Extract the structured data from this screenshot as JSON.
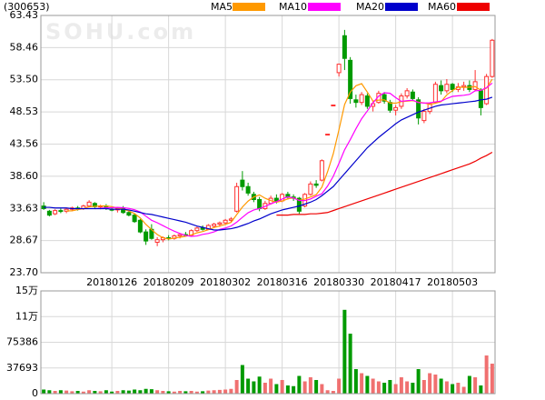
{
  "chart_data": [
    {
      "type": "candlestick",
      "title": "(300653)",
      "watermark": "SOHU.com",
      "categories": [
        null,
        null,
        null,
        null,
        null,
        null,
        null,
        null,
        null,
        null,
        null,
        null,
        "20180126",
        null,
        null,
        null,
        null,
        null,
        null,
        null,
        null,
        null,
        "20180209",
        null,
        null,
        null,
        null,
        null,
        null,
        null,
        null,
        null,
        "20180302",
        null,
        null,
        null,
        null,
        null,
        null,
        null,
        null,
        null,
        "20180316",
        null,
        null,
        null,
        null,
        null,
        null,
        null,
        null,
        null,
        "20180330",
        null,
        null,
        null,
        null,
        null,
        null,
        null,
        null,
        null,
        "20180417",
        null,
        null,
        null,
        null,
        null,
        null,
        null,
        null,
        null,
        "20180503",
        null,
        null,
        null,
        null,
        null,
        null,
        null
      ],
      "open": [
        34.0,
        33.2,
        32.8,
        33.3,
        33.2,
        33.5,
        33.7,
        33.6,
        34.0,
        34.4,
        33.9,
        34.0,
        33.5,
        33.4,
        33.6,
        33.0,
        32.6,
        31.8,
        30.0,
        30.4,
        28.4,
        28.8,
        29.1,
        29.0,
        29.4,
        29.6,
        29.5,
        30.2,
        30.6,
        30.4,
        30.9,
        31.2,
        31.4,
        31.8,
        33.2,
        38.0,
        37.0,
        35.8,
        35.0,
        33.6,
        34.4,
        35.2,
        34.8,
        35.8,
        35.4,
        35.2,
        34.0,
        35.8,
        37.4,
        38.0,
        45.1,
        49.6,
        54.6,
        60.3,
        56.5,
        50.4,
        50.0,
        51.0,
        49.4,
        50.0,
        51.2,
        50.0,
        48.8,
        49.4,
        51.0,
        51.6,
        50.4,
        47.2,
        48.6,
        50.0,
        52.6,
        51.8,
        52.8,
        52.0,
        52.4,
        52.6,
        52.0,
        51.8,
        49.8,
        54.0
      ],
      "high": [
        34.6,
        33.4,
        33.5,
        33.6,
        33.7,
        33.9,
        34.0,
        34.2,
        34.9,
        34.6,
        34.2,
        34.3,
        33.9,
        33.8,
        34.0,
        33.4,
        32.9,
        32.0,
        30.4,
        31.2,
        29.2,
        29.3,
        29.5,
        29.6,
        29.8,
        30.0,
        30.4,
        30.8,
        31.0,
        31.2,
        31.4,
        31.6,
        32.0,
        32.3,
        37.6,
        39.4,
        37.6,
        36.2,
        35.4,
        34.8,
        35.6,
        35.8,
        36.0,
        36.2,
        35.8,
        35.4,
        36.0,
        37.8,
        38.0,
        41.2,
        45.1,
        49.6,
        56.0,
        61.2,
        57.0,
        51.2,
        51.6,
        51.4,
        50.2,
        51.8,
        51.6,
        50.4,
        49.6,
        51.4,
        52.2,
        52.0,
        50.8,
        49.0,
        50.0,
        53.2,
        53.4,
        53.6,
        53.0,
        53.0,
        53.2,
        53.4,
        55.0,
        52.2,
        54.4,
        59.8
      ],
      "low": [
        33.4,
        32.4,
        32.6,
        32.9,
        32.9,
        33.2,
        33.3,
        33.4,
        33.8,
        33.7,
        33.5,
        33.4,
        33.2,
        33.0,
        32.8,
        32.4,
        31.4,
        29.8,
        28.0,
        28.8,
        27.8,
        28.4,
        28.7,
        28.8,
        29.0,
        29.3,
        29.4,
        30.0,
        30.2,
        30.3,
        30.6,
        30.8,
        31.1,
        31.5,
        33.0,
        36.4,
        35.6,
        34.6,
        33.2,
        33.4,
        34.2,
        34.4,
        34.6,
        35.0,
        34.8,
        32.8,
        33.8,
        35.6,
        36.8,
        37.8,
        45.1,
        49.6,
        54.0,
        55.0,
        49.8,
        49.2,
        49.6,
        49.0,
        48.6,
        49.8,
        49.8,
        48.4,
        48.0,
        49.0,
        50.6,
        50.2,
        46.6,
        46.8,
        48.2,
        49.8,
        51.2,
        51.4,
        51.6,
        51.6,
        51.8,
        51.6,
        51.8,
        48.0,
        49.6,
        53.8
      ],
      "close": [
        33.6,
        32.6,
        33.3,
        33.2,
        33.5,
        33.7,
        33.6,
        34.0,
        34.6,
        33.9,
        34.0,
        33.6,
        33.4,
        33.6,
        33.0,
        32.6,
        31.6,
        30.0,
        28.6,
        29.0,
        28.8,
        29.1,
        29.0,
        29.4,
        29.6,
        29.5,
        30.2,
        30.6,
        30.4,
        31.0,
        31.2,
        31.4,
        31.8,
        32.0,
        37.0,
        37.0,
        36.0,
        35.0,
        33.6,
        34.4,
        35.2,
        34.8,
        35.8,
        35.4,
        35.2,
        33.2,
        35.8,
        37.4,
        37.2,
        41.0,
        45.1,
        49.6,
        55.9,
        56.8,
        50.6,
        50.0,
        51.2,
        49.4,
        49.8,
        51.4,
        50.2,
        48.8,
        49.2,
        51.0,
        51.8,
        50.6,
        47.6,
        48.6,
        49.8,
        52.8,
        51.8,
        52.8,
        52.0,
        52.4,
        52.6,
        52.0,
        53.2,
        49.2,
        54.0,
        59.6
      ],
      "up_color": "#ff3030",
      "down_color": "#009a00",
      "series": [
        {
          "name": "MA5",
          "color": "#ff9900",
          "values": [
            null,
            null,
            null,
            null,
            33.24,
            33.26,
            33.46,
            33.6,
            33.88,
            33.96,
            34.02,
            34.02,
            33.9,
            33.7,
            33.52,
            33.24,
            32.84,
            32.16,
            31.16,
            30.36,
            29.6,
            29.1,
            28.9,
            29.06,
            29.18,
            29.32,
            29.54,
            29.86,
            30.06,
            30.34,
            30.68,
            30.92,
            31.16,
            31.48,
            32.68,
            33.84,
            34.76,
            35.4,
            35.72,
            35.2,
            34.84,
            34.6,
            34.76,
            35.12,
            35.28,
            34.88,
            35.08,
            35.4,
            35.76,
            36.92,
            39.3,
            42.06,
            45.76,
            49.68,
            51.6,
            52.58,
            52.9,
            51.6,
            50.2,
            50.36,
            50.4,
            49.92,
            49.88,
            50.12,
            50.2,
            50.28,
            50.04,
            49.92,
            49.68,
            49.88,
            50.12,
            51.16,
            51.84,
            52.36,
            52.32,
            52.36,
            52.44,
            51.88,
            52.2,
            53.6
          ]
        },
        {
          "name": "MA10",
          "color": "#ff00ff",
          "values": [
            null,
            null,
            null,
            null,
            null,
            null,
            null,
            null,
            null,
            33.6,
            33.64,
            33.74,
            33.75,
            33.79,
            33.74,
            33.63,
            33.43,
            33.09,
            32.43,
            31.8,
            31.42,
            30.97,
            30.53,
            30.11,
            29.77,
            29.46,
            29.32,
            29.38,
            29.62,
            29.76,
            30.0,
            30.39,
            30.61,
            30.91,
            31.51,
            32.26,
            32.96,
            33.4,
            33.6,
            33.94,
            34.34,
            34.68,
            35.08,
            35.42,
            35.24,
            34.86,
            34.84,
            35.08,
            35.52,
            35.9,
            37.09,
            38.58,
            40.58,
            42.68,
            44.26,
            45.94,
            47.48,
            48.68,
            49.94,
            50.98,
            51.49,
            51.41,
            50.74,
            50.16,
            50.28,
            50.34,
            49.98,
            49.9,
            49.94,
            50.08,
            50.2,
            50.6,
            50.94,
            51.02,
            51.1,
            51.24,
            51.8,
            51.86,
            52.28,
            52.98
          ]
        },
        {
          "name": "MA20",
          "color": "#0000cc",
          "values": [
            33.8,
            33.8,
            33.7,
            33.7,
            33.7,
            33.6,
            33.6,
            33.6,
            33.6,
            33.6,
            33.6,
            33.6,
            33.5,
            33.5,
            33.5,
            33.4,
            33.2,
            33.0,
            32.8,
            32.7,
            32.5,
            32.3,
            32.1,
            31.9,
            31.7,
            31.5,
            31.2,
            30.9,
            30.7,
            30.5,
            30.3,
            30.3,
            30.4,
            30.5,
            30.7,
            31.0,
            31.3,
            31.7,
            32.0,
            32.4,
            32.8,
            33.1,
            33.4,
            33.6,
            33.8,
            34.0,
            34.3,
            34.6,
            35.0,
            35.6,
            36.3,
            37.0,
            38.0,
            39.0,
            40.0,
            41.0,
            42.0,
            43.0,
            43.8,
            44.6,
            45.3,
            46.0,
            46.7,
            47.3,
            47.7,
            48.1,
            48.5,
            48.8,
            49.1,
            49.4,
            49.6,
            49.7,
            49.8,
            49.9,
            50.0,
            50.1,
            50.2,
            50.4,
            50.5,
            50.8
          ]
        },
        {
          "name": "MA60",
          "color": "#ee0000",
          "values": [
            null,
            null,
            null,
            null,
            null,
            null,
            null,
            null,
            null,
            null,
            null,
            null,
            null,
            null,
            null,
            null,
            null,
            null,
            null,
            null,
            null,
            null,
            null,
            null,
            null,
            null,
            null,
            null,
            null,
            null,
            null,
            null,
            null,
            null,
            null,
            null,
            null,
            null,
            null,
            null,
            null,
            32.6,
            32.6,
            32.6,
            32.7,
            32.7,
            32.7,
            32.8,
            32.8,
            32.9,
            33.0,
            33.3,
            33.6,
            33.9,
            34.2,
            34.5,
            34.8,
            35.1,
            35.4,
            35.7,
            36.0,
            36.3,
            36.6,
            36.9,
            37.2,
            37.5,
            37.8,
            38.1,
            38.4,
            38.7,
            39.0,
            39.3,
            39.6,
            39.9,
            40.2,
            40.5,
            40.9,
            41.4,
            41.8,
            42.3
          ]
        }
      ],
      "ylim": [
        23.7,
        63.43
      ],
      "yticks": [
        {
          "value": 23.7,
          "label": "23.70"
        },
        28.67,
        33.63,
        {
          "value": 38.6,
          "label": "38.60"
        },
        43.56,
        48.53,
        {
          "value": 53.5,
          "label": "53.50"
        },
        58.46,
        63.43
      ],
      "grid": true
    },
    {
      "type": "bar",
      "values": [
        6000,
        5000,
        4000,
        5000,
        4500,
        3500,
        4000,
        3000,
        5000,
        4000,
        3500,
        5000,
        3000,
        4000,
        5000,
        4500,
        6000,
        5000,
        7000,
        6500,
        5000,
        4000,
        3500,
        3000,
        4000,
        3500,
        4000,
        3000,
        3500,
        4500,
        5000,
        5500,
        6000,
        7000,
        20000,
        42000,
        22000,
        18000,
        25000,
        16000,
        22000,
        14000,
        20000,
        12000,
        11000,
        26000,
        18000,
        24000,
        20000,
        14000,
        5000,
        4000,
        22000,
        123000,
        88000,
        36000,
        30000,
        26000,
        22000,
        18000,
        16000,
        20000,
        14000,
        24000,
        18000,
        16000,
        36000,
        20000,
        30000,
        28000,
        22000,
        18000,
        14000,
        16000,
        10000,
        26000,
        24000,
        12000,
        56000,
        44000
      ],
      "ylim": [
        0,
        150772
      ],
      "yticks": [
        0,
        37693,
        75386,
        {
          "value": 113079,
          "label": "11万"
        },
        {
          "value": 150772,
          "label": "15万"
        }
      ],
      "grid": true
    }
  ]
}
